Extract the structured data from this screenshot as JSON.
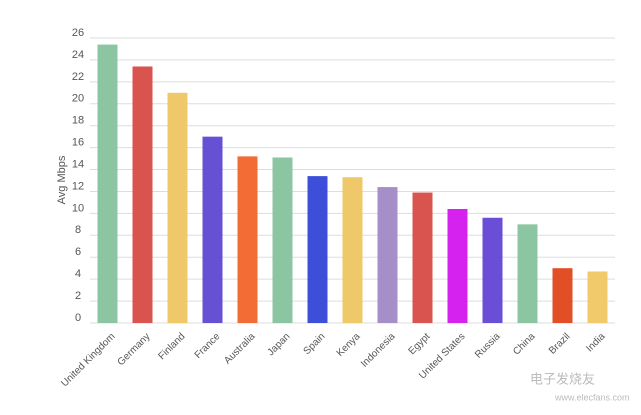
{
  "chart_data": {
    "type": "bar",
    "y_label": "Avg Mbps",
    "categories": [
      "United Kingdom",
      "Germany",
      "Finland",
      "France",
      "Australia",
      "Japan",
      "Spain",
      "Kenya",
      "Indonesia",
      "Egypt",
      "United States",
      "Russia",
      "China",
      "Brazil",
      "India"
    ],
    "values": [
      25.4,
      23.4,
      21,
      17,
      15.2,
      15.1,
      13.4,
      13.3,
      12.4,
      11.9,
      10.4,
      9.6,
      9,
      5,
      4.7
    ],
    "colors": [
      "#8cc5a2",
      "#d9544f",
      "#efc86a",
      "#6650d3",
      "#f36b35",
      "#8cc5a2",
      "#3d4fd8",
      "#efc86a",
      "#a68ec9",
      "#d9544f",
      "#d522ee",
      "#6a4ed6",
      "#8cc5a2",
      "#e24f26",
      "#f1cb6b"
    ],
    "ylim": [
      0,
      26
    ],
    "yticks": [
      0,
      2,
      4,
      6,
      8,
      10,
      12,
      14,
      16,
      18,
      20,
      22,
      24,
      26
    ],
    "grid": true,
    "watermark": "电子发烧友",
    "watermark_url": "www.elecfans.com"
  }
}
